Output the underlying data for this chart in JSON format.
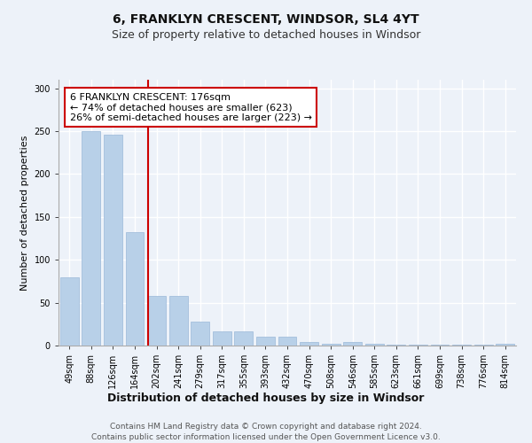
{
  "title1": "6, FRANKLYN CRESCENT, WINDSOR, SL4 4YT",
  "title2": "Size of property relative to detached houses in Windsor",
  "xlabel": "Distribution of detached houses by size in Windsor",
  "ylabel": "Number of detached properties",
  "categories": [
    "49sqm",
    "88sqm",
    "126sqm",
    "164sqm",
    "202sqm",
    "241sqm",
    "279sqm",
    "317sqm",
    "355sqm",
    "393sqm",
    "432sqm",
    "470sqm",
    "508sqm",
    "546sqm",
    "585sqm",
    "623sqm",
    "661sqm",
    "699sqm",
    "738sqm",
    "776sqm",
    "814sqm"
  ],
  "values": [
    80,
    250,
    246,
    132,
    58,
    58,
    28,
    17,
    17,
    10,
    10,
    4,
    2,
    4,
    2,
    1,
    1,
    1,
    1,
    1,
    2
  ],
  "bar_color": "#b8d0e8",
  "bar_edge_color": "#9ab8d8",
  "bar_fill_alpha": 1.0,
  "vline_x": 3.62,
  "vline_color": "#cc0000",
  "annotation_text": "6 FRANKLYN CRESCENT: 176sqm\n← 74% of detached houses are smaller (623)\n26% of semi-detached houses are larger (223) →",
  "annotation_box_color": "#ffffff",
  "annotation_box_edge": "#cc0000",
  "ylim": [
    0,
    310
  ],
  "yticks": [
    0,
    50,
    100,
    150,
    200,
    250,
    300
  ],
  "footer1": "Contains HM Land Registry data © Crown copyright and database right 2024.",
  "footer2": "Contains public sector information licensed under the Open Government Licence v3.0.",
  "bg_color": "#edf2f9",
  "plot_bg_color": "#edf2f9",
  "grid_color": "#ffffff",
  "title1_fontsize": 10,
  "title2_fontsize": 9,
  "xlabel_fontsize": 9,
  "ylabel_fontsize": 8,
  "tick_fontsize": 7,
  "annotation_fontsize": 8,
  "footer_fontsize": 6.5
}
